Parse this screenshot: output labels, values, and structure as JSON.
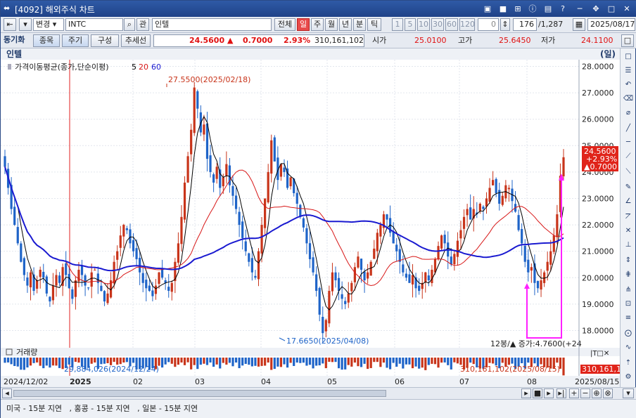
{
  "window": {
    "title": "[4092] 해외주식 차트",
    "controls": [
      "double-arrow-icon",
      "window-icon",
      "pin-icon",
      "grid-icon",
      "info-icon",
      "minimize-icon",
      "move-icon",
      "close-icon"
    ]
  },
  "toolbar1": {
    "mode_label": "변경",
    "symbol": "INTC",
    "search_icon": "search-icon",
    "gwan_label": "관",
    "name": "인텔",
    "all_label": "전체",
    "periods": [
      "일",
      "주",
      "월",
      "년",
      "분",
      "틱"
    ],
    "active_period": "일",
    "intervals": [
      "1",
      "5",
      "10",
      "30",
      "60",
      "120"
    ],
    "interval_value": "0",
    "count": "176",
    "total": "/1,287",
    "date": "2025/08/17"
  },
  "toolbar2": {
    "sync_label": "동기화",
    "tabs": [
      "종목",
      "주기",
      "구성",
      "추세선"
    ],
    "price": "24.5600",
    "change_arrow": "▲",
    "change": "0.7000",
    "change_pct": "2.93%",
    "volume": "310,161,102",
    "open_label": "시가",
    "open": "25.0100",
    "high_label": "고가",
    "high": "25.6450",
    "low_label": "저가",
    "low": "24.1100"
  },
  "chart_header": {
    "name": "인텔",
    "period_tag": "(일)",
    "ma_label": "가격이동평균(종가,단순이평)",
    "ma_periods": [
      "5",
      "20",
      "60"
    ],
    "volume_label": "거래량"
  },
  "colors": {
    "up": "#c8341a",
    "down": "#1f64c8",
    "ma5": "#000000",
    "ma20": "#d81818",
    "ma60": "#1a1ad0",
    "annotation": "#ff20ff"
  },
  "chart_data": {
    "type": "candlestick",
    "y_ticks": [
      "28.0000",
      "27.0000",
      "26.0000",
      "25.0000",
      "24.0000",
      "23.0000",
      "22.0000",
      "21.0000",
      "20.0000",
      "19.0000",
      "18.0000"
    ],
    "ylim": [
      17.4,
      28.2
    ],
    "x_labels": [
      "2024/12/02",
      "2025",
      "02",
      "03",
      "04",
      "05",
      "06",
      "07",
      "08",
      "2025/08/15"
    ],
    "high_marker": "27.5500(2025/02/18)",
    "low_marker": "17.6650(2025/04/08)",
    "last_price": {
      "price": "24.5600",
      "pct": "+2.93%",
      "change": "▲0.7000"
    },
    "bottom_note": "12봉/▲ 증가:4.7600(+24",
    "volume_min_marker": "29,884,026(2024/12/24)",
    "volume_last_marker": "310,161,102(2025/08/15)",
    "volume_last_value": "310,161,102",
    "closes": [
      24.2,
      23.4,
      22.6,
      22.0,
      21.3,
      20.6,
      20.1,
      19.7,
      20.2,
      19.5,
      19.9,
      20.3,
      20.0,
      19.4,
      19.1,
      19.7,
      20.1,
      19.8,
      20.4,
      20.1,
      19.6,
      19.2,
      19.9,
      20.3,
      20.1,
      19.7,
      19.6,
      20.2,
      20.3,
      19.8,
      19.5,
      19.1,
      19.4,
      19.9,
      20.6,
      21.0,
      21.6,
      22.0,
      21.8,
      21.3,
      21.0,
      20.7,
      20.2,
      19.8,
      19.6,
      19.5,
      19.3,
      19.7,
      20.2,
      20.0,
      19.8,
      19.5,
      19.8,
      20.6,
      21.3,
      22.3,
      23.6,
      24.6,
      25.6,
      27.2,
      26.4,
      25.5,
      25.8,
      24.5,
      24.0,
      23.6,
      24.2,
      23.4,
      23.8,
      24.3,
      23.5,
      23.1,
      22.6,
      22.0,
      21.5,
      21.0,
      20.6,
      20.2,
      20.0,
      21.0,
      22.0,
      23.0,
      24.0,
      25.2,
      24.4,
      23.7,
      24.3,
      24.0,
      23.4,
      23.8,
      23.2,
      22.8,
      22.3,
      21.9,
      21.3,
      20.7,
      20.2,
      19.5,
      18.6,
      17.9,
      18.4,
      19.5,
      20.2,
      19.9,
      19.5,
      19.2,
      19.0,
      19.4,
      19.8,
      20.4,
      20.8,
      20.3,
      19.9,
      20.2,
      20.6,
      21.1,
      21.7,
      22.0,
      22.4,
      22.2,
      21.7,
      21.3,
      21.0,
      20.6,
      20.2,
      20.0,
      19.8,
      20.1,
      19.6,
      19.5,
      19.8,
      20.2,
      19.9,
      20.3,
      20.7,
      21.2,
      21.6,
      21.3,
      20.8,
      20.5,
      20.9,
      21.4,
      21.8,
      22.3,
      22.6,
      22.2,
      22.6,
      22.4,
      22.8,
      22.6,
      23.0,
      23.4,
      23.7,
      23.2,
      22.8,
      23.1,
      23.5,
      23.4,
      22.9,
      22.5,
      21.8,
      21.3,
      20.6,
      20.2,
      20.4,
      19.8,
      19.6,
      19.9,
      20.2,
      20.6,
      21.0,
      21.6,
      22.4,
      23.86,
      24.56
    ],
    "volume_count": 176
  },
  "scrollbar": {
    "zoom_icons": [
      "zoom-in-icon",
      "zoom-out-icon",
      "zoom-fit-icon",
      "zoom-reset-icon"
    ]
  },
  "status": {
    "text": "미국 - 15분 지연   , 홍콩 - 15분 지연   , 일본 - 15분 지연"
  }
}
